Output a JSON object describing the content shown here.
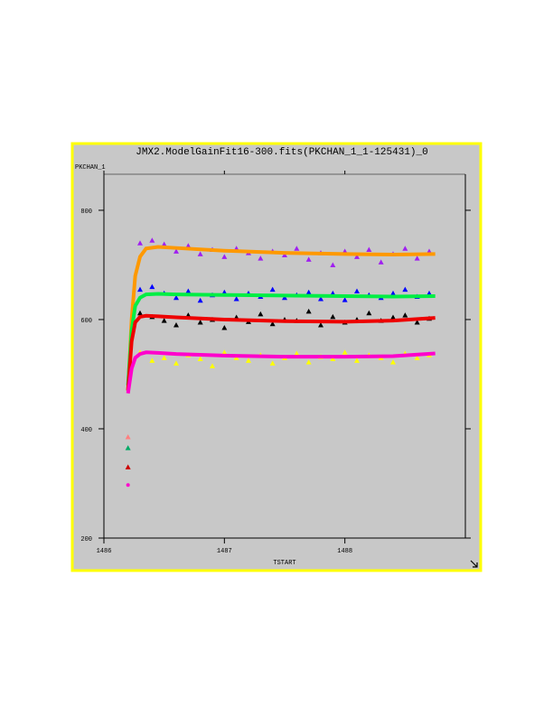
{
  "chart_data": {
    "type": "scatter",
    "title": "JMX2.ModelGainFit16-300.fits(PKCHAN_1_1-125431)_0",
    "y_label": "PKCHAN_1",
    "x_label": "TSTART",
    "xlim": [
      1486,
      1489
    ],
    "ylim": [
      200,
      866
    ],
    "xticks": [
      1486,
      1487,
      1488
    ],
    "yticks": [
      200,
      400,
      600,
      800
    ],
    "series": [
      {
        "color": "#a020f0",
        "marker": "triangle",
        "x": [
          1486.3,
          1486.4,
          1486.5,
          1486.6,
          1486.7,
          1486.8,
          1486.9,
          1487.0,
          1487.1,
          1487.2,
          1487.3,
          1487.4,
          1487.5,
          1487.6,
          1487.7,
          1487.8,
          1487.9,
          1488.0,
          1488.1,
          1488.2,
          1488.3,
          1488.4,
          1488.5,
          1488.6,
          1488.7
        ],
        "values": [
          740,
          745,
          738,
          725,
          735,
          720,
          728,
          715,
          730,
          722,
          712,
          725,
          718,
          730,
          710,
          722,
          700,
          725,
          715,
          728,
          705,
          720,
          730,
          712,
          725
        ]
      },
      {
        "color": "#0000ff",
        "marker": "triangle",
        "x": [
          1486.3,
          1486.4,
          1486.5,
          1486.6,
          1486.7,
          1486.8,
          1486.9,
          1487.0,
          1487.1,
          1487.2,
          1487.3,
          1487.4,
          1487.5,
          1487.6,
          1487.7,
          1487.8,
          1487.9,
          1488.0,
          1488.1,
          1488.2,
          1488.3,
          1488.4,
          1488.5,
          1488.6,
          1488.7
        ],
        "values": [
          655,
          660,
          648,
          640,
          652,
          635,
          645,
          650,
          638,
          648,
          642,
          655,
          640,
          645,
          650,
          638,
          648,
          636,
          652,
          645,
          640,
          648,
          655,
          642,
          648
        ]
      },
      {
        "color": "#000000",
        "marker": "triangle",
        "x": [
          1486.3,
          1486.4,
          1486.5,
          1486.6,
          1486.7,
          1486.8,
          1486.9,
          1487.0,
          1487.1,
          1487.2,
          1487.3,
          1487.4,
          1487.5,
          1487.6,
          1487.7,
          1487.8,
          1487.9,
          1488.0,
          1488.1,
          1488.2,
          1488.3,
          1488.4,
          1488.5,
          1488.6,
          1488.7
        ],
        "values": [
          612,
          605,
          598,
          590,
          608,
          595,
          600,
          585,
          604,
          596,
          610,
          592,
          600,
          598,
          615,
          590,
          605,
          595,
          600,
          612,
          598,
          604,
          608,
          595,
          602
        ]
      },
      {
        "color": "#ffff00",
        "marker": "triangle",
        "x": [
          1486.3,
          1486.4,
          1486.5,
          1486.6,
          1486.7,
          1486.8,
          1486.9,
          1487.0,
          1487.1,
          1487.2,
          1487.3,
          1487.4,
          1487.5,
          1487.6,
          1487.7,
          1487.8,
          1487.9,
          1488.0,
          1488.1,
          1488.2,
          1488.3,
          1488.4,
          1488.5,
          1488.6,
          1488.7
        ],
        "values": [
          540,
          525,
          530,
          520,
          535,
          528,
          515,
          540,
          530,
          525,
          535,
          520,
          530,
          538,
          522,
          532,
          528,
          540,
          525,
          535,
          530,
          522,
          538,
          530,
          535
        ]
      },
      {
        "color": "#ff9900",
        "marker": "line",
        "x": [
          1486.2,
          1486.23,
          1486.26,
          1486.3,
          1486.35,
          1486.45,
          1486.6,
          1487.0,
          1487.5,
          1488.0,
          1488.4,
          1488.75
        ],
        "values": [
          470,
          600,
          680,
          715,
          730,
          733,
          731,
          726,
          722,
          720,
          719,
          720
        ]
      },
      {
        "color": "#00ee44",
        "marker": "line",
        "x": [
          1486.2,
          1486.23,
          1486.26,
          1486.3,
          1486.35,
          1486.45,
          1486.6,
          1487.0,
          1487.5,
          1488.0,
          1488.4,
          1488.75
        ],
        "values": [
          480,
          580,
          625,
          640,
          646,
          647,
          646,
          645,
          644,
          643,
          642,
          643
        ]
      },
      {
        "color": "#ee0000",
        "marker": "line",
        "x": [
          1486.2,
          1486.23,
          1486.26,
          1486.3,
          1486.35,
          1486.45,
          1486.6,
          1487.0,
          1487.5,
          1488.0,
          1488.4,
          1488.75
        ],
        "values": [
          470,
          560,
          595,
          605,
          607,
          606,
          604,
          600,
          597,
          596,
          598,
          603
        ]
      },
      {
        "color": "#ff00cc",
        "marker": "line",
        "x": [
          1486.2,
          1486.23,
          1486.26,
          1486.3,
          1486.35,
          1486.45,
          1486.6,
          1487.0,
          1487.5,
          1488.0,
          1488.4,
          1488.75
        ],
        "values": [
          465,
          510,
          530,
          537,
          540,
          539,
          537,
          534,
          532,
          532,
          533,
          538
        ]
      },
      {
        "color": "#ff8080",
        "marker": "triangle",
        "x": [
          1486.2
        ],
        "values": [
          385
        ]
      },
      {
        "color": "#00aa66",
        "marker": "triangle",
        "x": [
          1486.2
        ],
        "values": [
          365
        ]
      },
      {
        "color": "#cc0000",
        "marker": "triangle",
        "x": [
          1486.2
        ],
        "values": [
          330
        ]
      },
      {
        "color": "#ff00cc",
        "marker": "dot",
        "x": [
          1486.2
        ],
        "values": [
          297
        ]
      }
    ]
  }
}
